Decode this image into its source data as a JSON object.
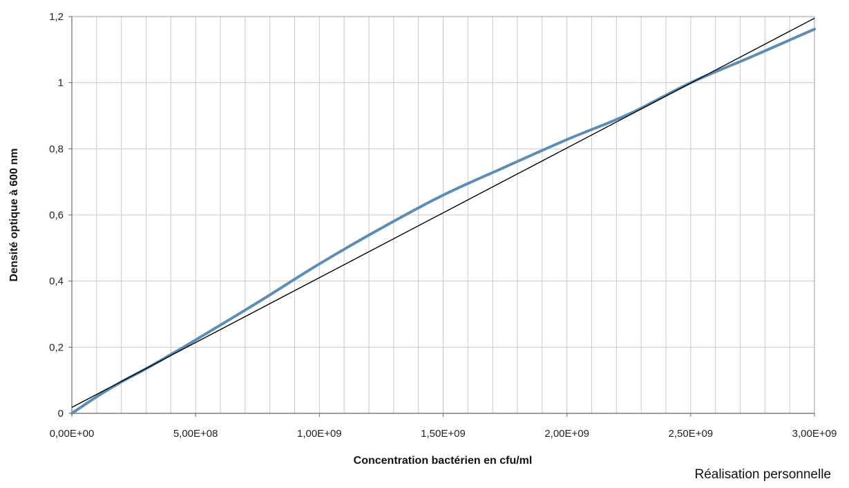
{
  "chart_data": {
    "type": "line",
    "title": "",
    "xlabel": "Concentration bactérien en cfu/ml",
    "ylabel": "Densité optique à 600 nm",
    "xlim": [
      0,
      3000000000
    ],
    "ylim": [
      0,
      1.2
    ],
    "x_ticks": [
      {
        "value": 0,
        "label": "0,00E+00"
      },
      {
        "value": 500000000,
        "label": "5,00E+08"
      },
      {
        "value": 1000000000,
        "label": "1,00E+09"
      },
      {
        "value": 1500000000,
        "label": "1,50E+09"
      },
      {
        "value": 2000000000,
        "label": "2,00E+09"
      },
      {
        "value": 2500000000,
        "label": "2,50E+09"
      },
      {
        "value": 3000000000,
        "label": "3,00E+09"
      }
    ],
    "y_ticks": [
      {
        "value": 0,
        "label": "0"
      },
      {
        "value": 0.2,
        "label": "0,2"
      },
      {
        "value": 0.4,
        "label": "0,4"
      },
      {
        "value": 0.6,
        "label": "0,6"
      },
      {
        "value": 0.8,
        "label": "0,8"
      },
      {
        "value": 1.0,
        "label": "1"
      },
      {
        "value": 1.2,
        "label": "1,2"
      }
    ],
    "grid": true,
    "x_minor_step": 100000000,
    "series": [
      {
        "color": "#5b8db8",
        "style": "curve",
        "points": [
          [
            0,
            0.0
          ],
          [
            100000000,
            0.05
          ],
          [
            200000000,
            0.095
          ],
          [
            300000000,
            0.135
          ],
          [
            400000000,
            0.178
          ],
          [
            500000000,
            0.222
          ],
          [
            750000000,
            0.335
          ],
          [
            1000000000,
            0.452
          ],
          [
            1250000000,
            0.56
          ],
          [
            1500000000,
            0.66
          ],
          [
            1750000000,
            0.745
          ],
          [
            2000000000,
            0.828
          ],
          [
            2250000000,
            0.905
          ],
          [
            2500000000,
            1.0
          ],
          [
            2750000000,
            1.08
          ],
          [
            3000000000,
            1.162
          ]
        ]
      },
      {
        "color": "#000000",
        "style": "trendline",
        "points": [
          [
            0,
            0.018
          ],
          [
            3000000000,
            1.195
          ]
        ]
      }
    ]
  },
  "footer": {
    "credit": "Réalisation personnelle"
  }
}
